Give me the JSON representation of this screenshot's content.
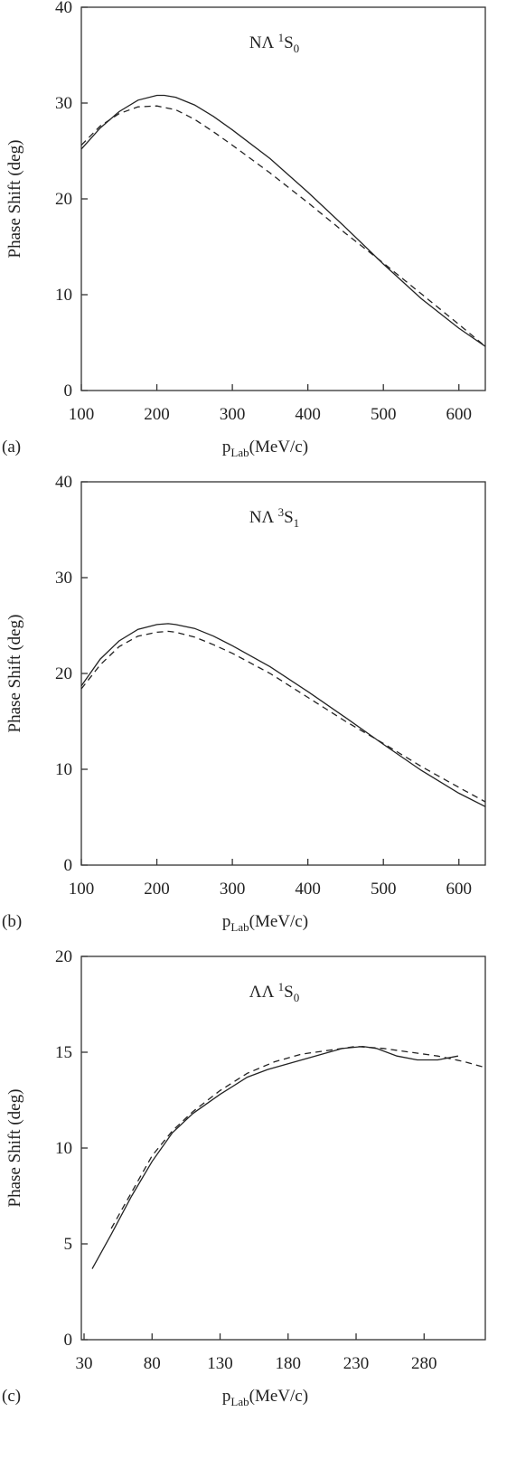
{
  "chart_data": [
    {
      "type": "line",
      "panel_label": "(a)",
      "title_main": "NΛ ",
      "title_sup": "1",
      "title_letter": "S",
      "title_sub": "0",
      "ylabel": "Phase Shift (deg)",
      "xlabel_main": "p",
      "xlabel_sub": "Lab",
      "xlabel_unit": "(MeV/c)",
      "xlim": [
        100,
        635
      ],
      "ylim": [
        0,
        40
      ],
      "xticks": [
        100,
        200,
        300,
        400,
        500,
        600
      ],
      "yticks": [
        0,
        10,
        20,
        30,
        40
      ],
      "grid": false,
      "series": [
        {
          "style": "solid",
          "x": [
            100,
            125,
            150,
            175,
            200,
            210,
            225,
            250,
            275,
            300,
            350,
            400,
            450,
            500,
            550,
            600,
            635
          ],
          "y": [
            25.2,
            27.4,
            29.1,
            30.3,
            30.8,
            30.8,
            30.6,
            29.8,
            28.6,
            27.2,
            24.2,
            20.7,
            17.0,
            13.2,
            9.6,
            6.5,
            4.6
          ]
        },
        {
          "style": "dashed",
          "x": [
            100,
            125,
            150,
            175,
            200,
            225,
            250,
            275,
            300,
            350,
            400,
            450,
            500,
            550,
            600,
            635
          ],
          "y": [
            25.6,
            27.6,
            28.9,
            29.6,
            29.7,
            29.3,
            28.3,
            27.0,
            25.6,
            22.7,
            19.6,
            16.4,
            13.3,
            10.1,
            6.9,
            4.6
          ]
        }
      ]
    },
    {
      "type": "line",
      "panel_label": "(b)",
      "title_main": "NΛ ",
      "title_sup": "3",
      "title_letter": "S",
      "title_sub": "1",
      "ylabel": "Phase Shift (deg)",
      "xlabel_main": "p",
      "xlabel_sub": "Lab",
      "xlabel_unit": "(MeV/c)",
      "xlim": [
        100,
        635
      ],
      "ylim": [
        0,
        40
      ],
      "xticks": [
        100,
        200,
        300,
        400,
        500,
        600
      ],
      "yticks": [
        0,
        10,
        20,
        30,
        40
      ],
      "grid": false,
      "series": [
        {
          "style": "solid",
          "x": [
            100,
            125,
            150,
            175,
            200,
            215,
            225,
            250,
            275,
            300,
            350,
            400,
            450,
            500,
            550,
            600,
            635
          ],
          "y": [
            18.7,
            21.5,
            23.4,
            24.6,
            25.1,
            25.2,
            25.1,
            24.7,
            23.9,
            22.9,
            20.7,
            18.1,
            15.4,
            12.6,
            9.9,
            7.5,
            6.1
          ]
        },
        {
          "style": "dashed",
          "x": [
            100,
            125,
            150,
            175,
            200,
            215,
            225,
            250,
            275,
            300,
            350,
            400,
            450,
            500,
            550,
            600,
            635
          ],
          "y": [
            18.4,
            20.9,
            22.8,
            23.9,
            24.3,
            24.4,
            24.3,
            23.8,
            23.0,
            22.1,
            20.0,
            17.5,
            15.0,
            12.7,
            10.3,
            8.1,
            6.6
          ]
        }
      ]
    },
    {
      "type": "line",
      "panel_label": "(c)",
      "title_main": "ΛΛ ",
      "title_sup": "1",
      "title_letter": "S",
      "title_sub": "0",
      "ylabel": "Phase Shift (deg)",
      "xlabel_main": "p",
      "xlabel_sub": "Lab",
      "xlabel_unit": "(MeV/c)",
      "xlim": [
        28,
        325
      ],
      "ylim": [
        0,
        20
      ],
      "xticks": [
        30,
        80,
        130,
        180,
        230,
        280
      ],
      "yticks": [
        0,
        5,
        10,
        15,
        20
      ],
      "grid": false,
      "series": [
        {
          "style": "solid",
          "x": [
            36,
            50,
            65,
            80,
            95,
            110,
            130,
            150,
            165,
            180,
            200,
            220,
            235,
            245,
            260,
            275,
            290,
            305
          ],
          "y": [
            3.7,
            5.5,
            7.5,
            9.3,
            10.8,
            11.8,
            12.8,
            13.7,
            14.1,
            14.4,
            14.8,
            15.2,
            15.3,
            15.2,
            14.8,
            14.6,
            14.6,
            14.8
          ]
        },
        {
          "style": "dashed",
          "x": [
            50,
            65,
            80,
            95,
            110,
            130,
            150,
            170,
            190,
            210,
            230,
            250,
            270,
            290,
            310,
            325
          ],
          "y": [
            5.8,
            7.7,
            9.6,
            10.9,
            11.9,
            13.0,
            13.9,
            14.5,
            14.9,
            15.1,
            15.3,
            15.2,
            15.0,
            14.8,
            14.5,
            14.2
          ]
        }
      ]
    }
  ]
}
